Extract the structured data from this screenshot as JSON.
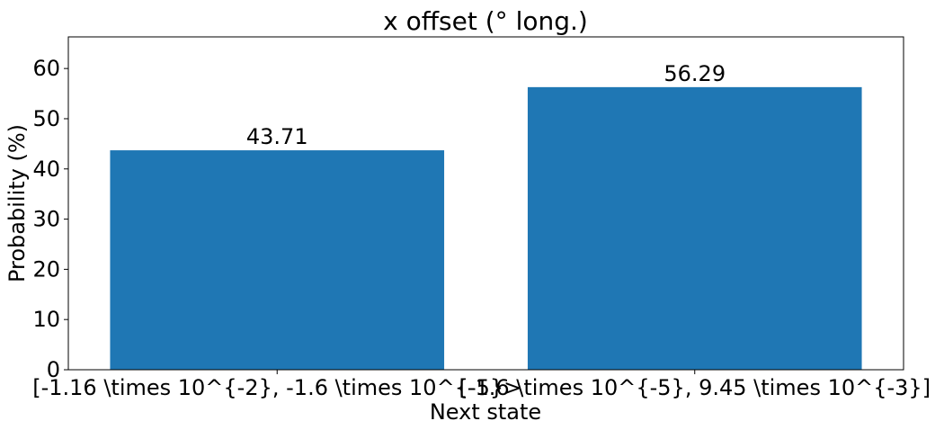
{
  "chart_data": {
    "type": "bar",
    "title": "x offset (° long.)",
    "xlabel": "Next state",
    "ylabel": "Probability (%)",
    "categories": [
      "[-1.16 \\times 10^{-2}, -1.6 \\times 10^{-5}>",
      "[-1.6 \\times 10^{-5}, 9.45 \\times 10^{-3}]"
    ],
    "values": [
      43.71,
      56.29
    ],
    "value_labels": [
      "43.71",
      "56.29"
    ],
    "ylim": [
      0,
      66.3
    ],
    "yticks": [
      0,
      10,
      20,
      30,
      40,
      50,
      60
    ],
    "bar_color": "#1f77b4",
    "grid": false,
    "legend": "none"
  }
}
